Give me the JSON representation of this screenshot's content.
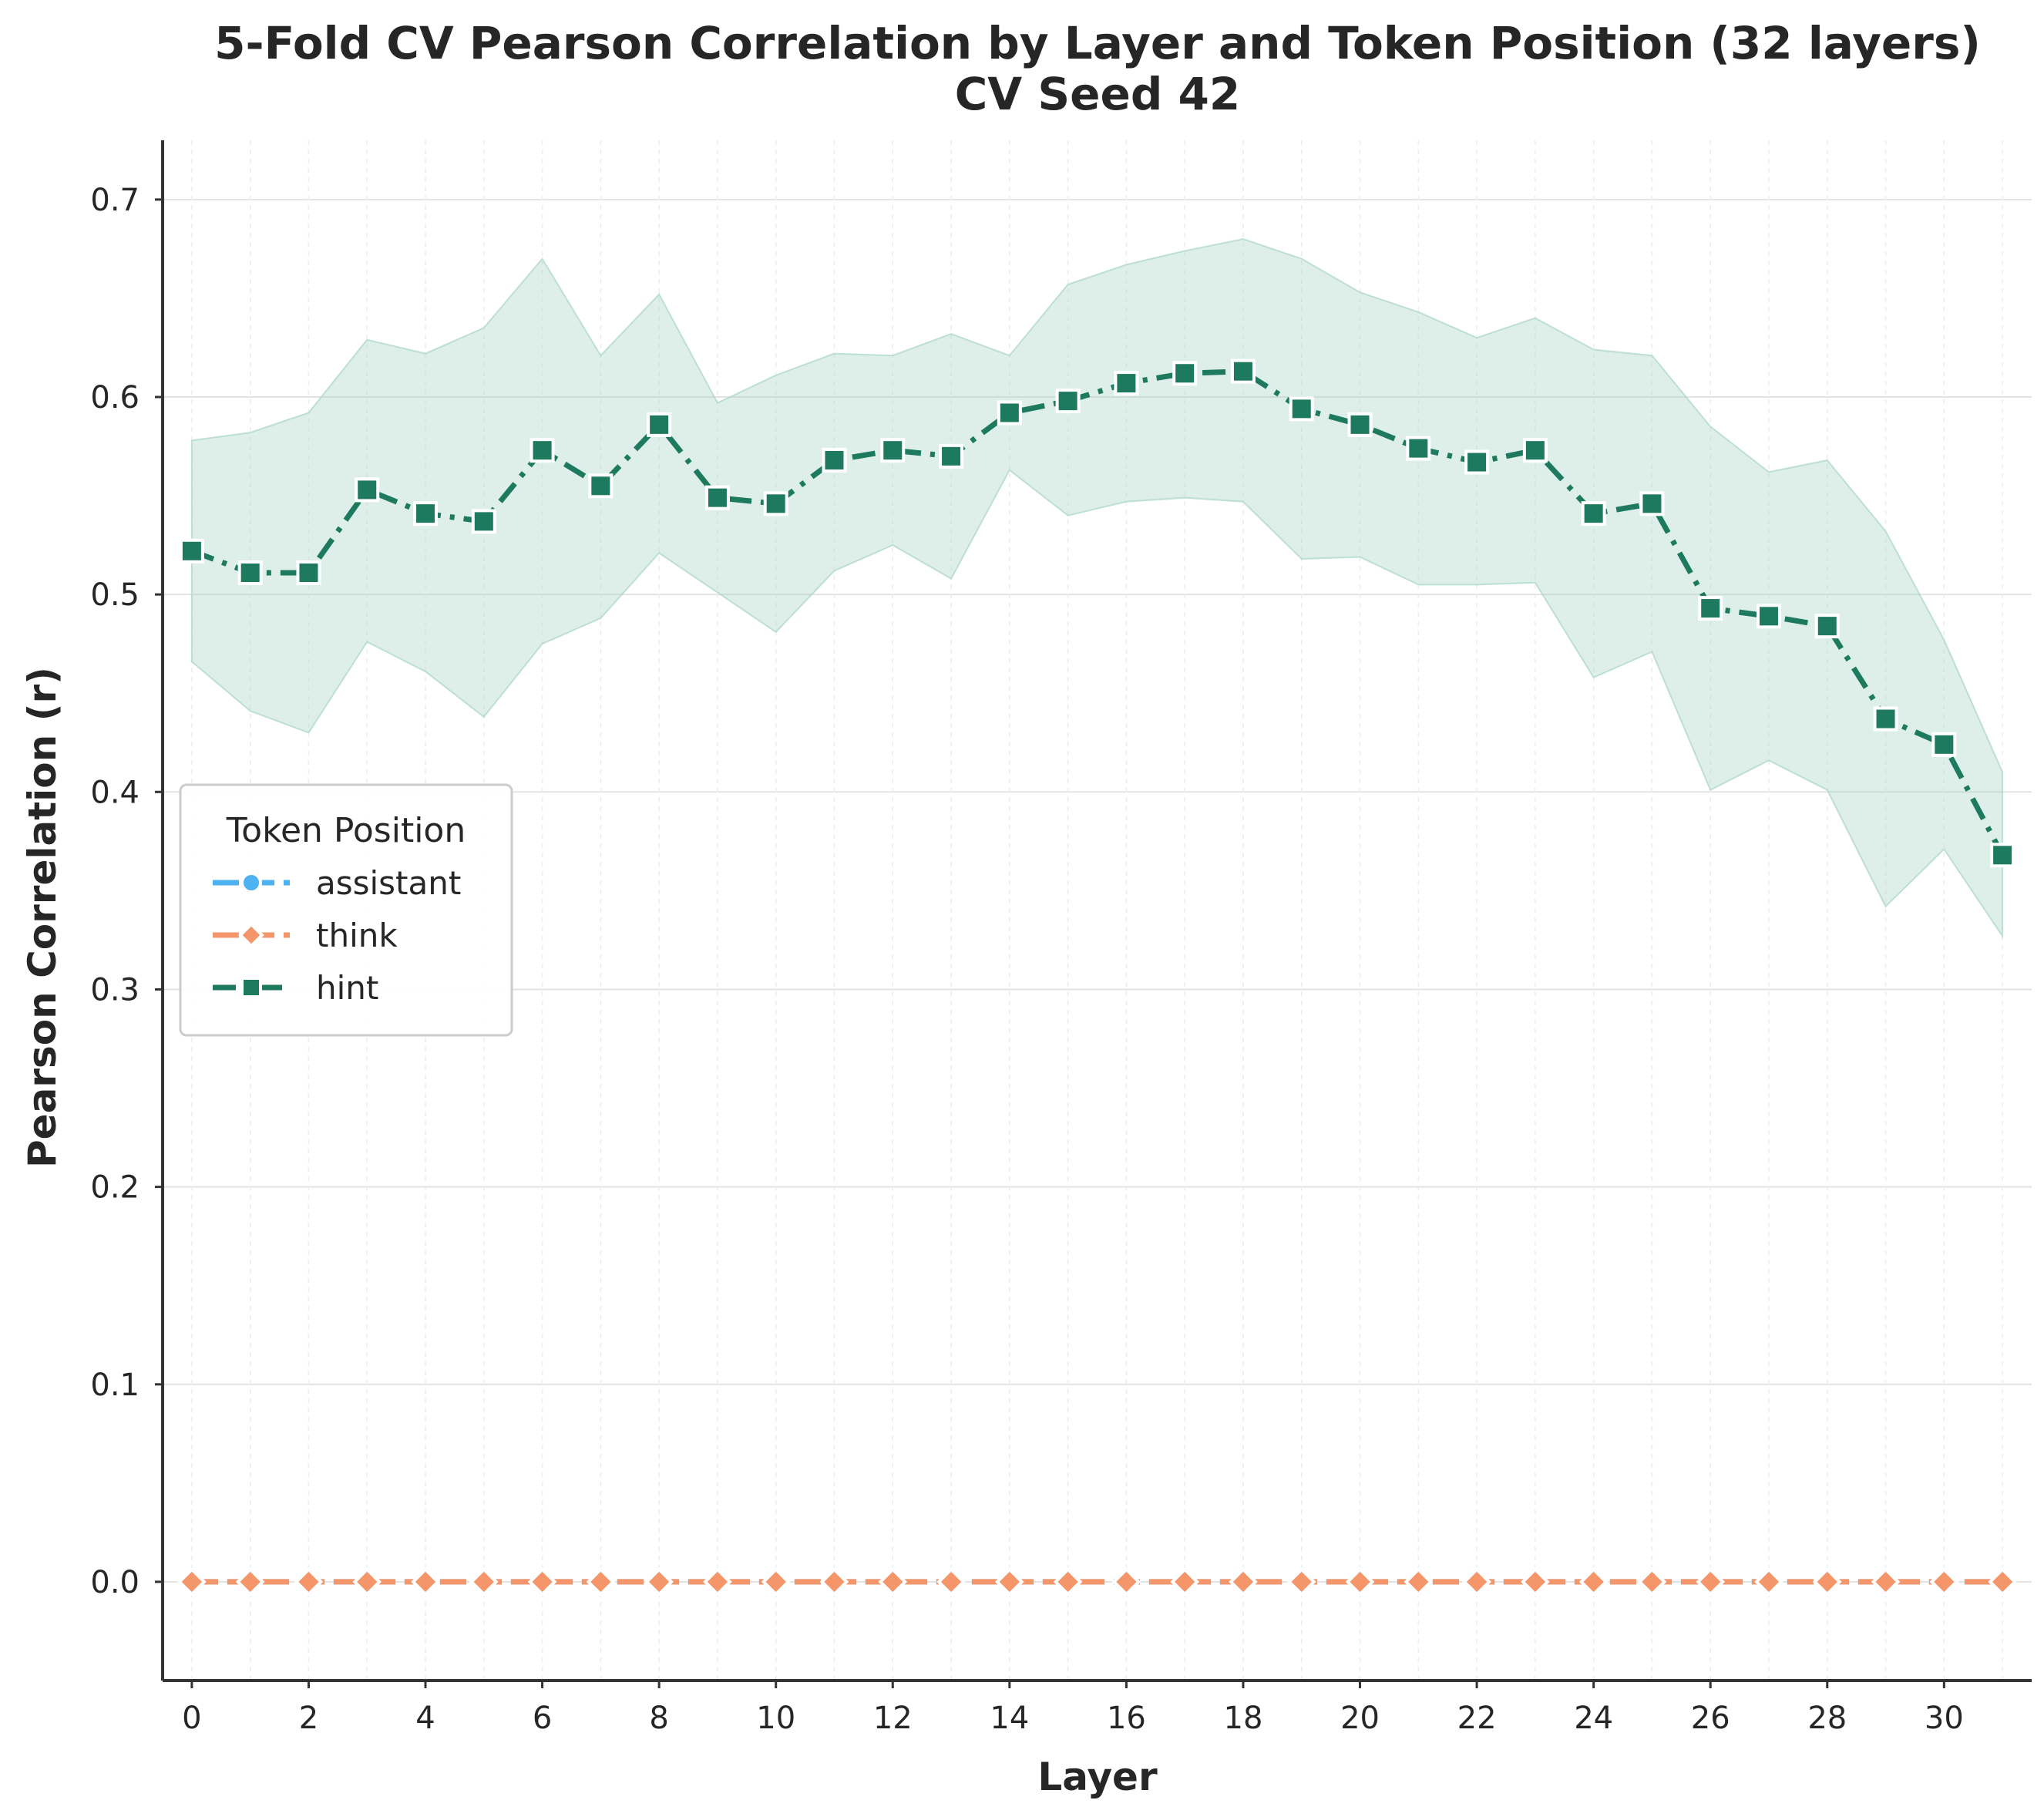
{
  "chart_data": {
    "type": "line",
    "title": "5-Fold CV Pearson Correlation by Layer and Token Position (32 layers)",
    "subtitle": "CV Seed 42",
    "xlabel": "Layer",
    "ylabel": "Pearson Correlation (r)",
    "xlim": [
      -0.5,
      31.5
    ],
    "ylim": [
      -0.05,
      0.73
    ],
    "xticks": [
      0,
      2,
      4,
      6,
      8,
      10,
      12,
      14,
      16,
      18,
      20,
      22,
      24,
      26,
      28,
      30
    ],
    "xtick_labels": [
      "0",
      "2",
      "4",
      "6",
      "8",
      "10",
      "12",
      "14",
      "16",
      "18",
      "20",
      "22",
      "24",
      "26",
      "28",
      "30"
    ],
    "yticks": [
      0.0,
      0.1,
      0.2,
      0.3,
      0.4,
      0.5,
      0.6,
      0.7
    ],
    "ytick_labels": [
      "0.0",
      "0.1",
      "0.2",
      "0.3",
      "0.4",
      "0.5",
      "0.6",
      "0.7"
    ],
    "grid": true,
    "legend": {
      "title": "Token Position",
      "placement": "center-left"
    },
    "x": [
      0,
      1,
      2,
      3,
      4,
      5,
      6,
      7,
      8,
      9,
      10,
      11,
      12,
      13,
      14,
      15,
      16,
      17,
      18,
      19,
      20,
      21,
      22,
      23,
      24,
      25,
      26,
      27,
      28,
      29,
      30,
      31
    ],
    "series": [
      {
        "name": "assistant",
        "color": "#4db3f0",
        "marker": "circle",
        "linestyle": "dashed",
        "values": [
          0,
          0,
          0,
          0,
          0,
          0,
          0,
          0,
          0,
          0,
          0,
          0,
          0,
          0,
          0,
          0,
          0,
          0,
          0,
          0,
          0,
          0,
          0,
          0,
          0,
          0,
          0,
          0,
          0,
          0,
          0,
          0
        ]
      },
      {
        "name": "think",
        "color": "#f4956a",
        "marker": "diamond",
        "linestyle": "dashed",
        "values": [
          0,
          0,
          0,
          0,
          0,
          0,
          0,
          0,
          0,
          0,
          0,
          0,
          0,
          0,
          0,
          0,
          0,
          0,
          0,
          0,
          0,
          0,
          0,
          0,
          0,
          0,
          0,
          0,
          0,
          0,
          0,
          0
        ]
      },
      {
        "name": "hint",
        "color": "#1e7a5f",
        "band_color": "#a8d5c6",
        "marker": "square",
        "linestyle": "dashdot",
        "values": [
          0.522,
          0.511,
          0.511,
          0.553,
          0.541,
          0.537,
          0.573,
          0.555,
          0.586,
          0.549,
          0.546,
          0.568,
          0.573,
          0.57,
          0.592,
          0.598,
          0.607,
          0.612,
          0.613,
          0.594,
          0.586,
          0.574,
          0.567,
          0.573,
          0.541,
          0.546,
          0.493,
          0.489,
          0.484,
          0.437,
          0.424,
          0.368
        ],
        "upper": [
          0.578,
          0.582,
          0.592,
          0.629,
          0.622,
          0.635,
          0.67,
          0.621,
          0.652,
          0.597,
          0.611,
          0.622,
          0.621,
          0.632,
          0.621,
          0.657,
          0.667,
          0.674,
          0.68,
          0.67,
          0.653,
          0.643,
          0.63,
          0.64,
          0.624,
          0.621,
          0.585,
          0.562,
          0.568,
          0.532,
          0.477,
          0.41
        ],
        "lower": [
          0.466,
          0.441,
          0.43,
          0.476,
          0.461,
          0.438,
          0.475,
          0.488,
          0.521,
          0.501,
          0.481,
          0.512,
          0.525,
          0.508,
          0.563,
          0.54,
          0.547,
          0.549,
          0.547,
          0.518,
          0.519,
          0.505,
          0.505,
          0.506,
          0.458,
          0.471,
          0.401,
          0.416,
          0.401,
          0.342,
          0.371,
          0.327
        ]
      }
    ]
  }
}
